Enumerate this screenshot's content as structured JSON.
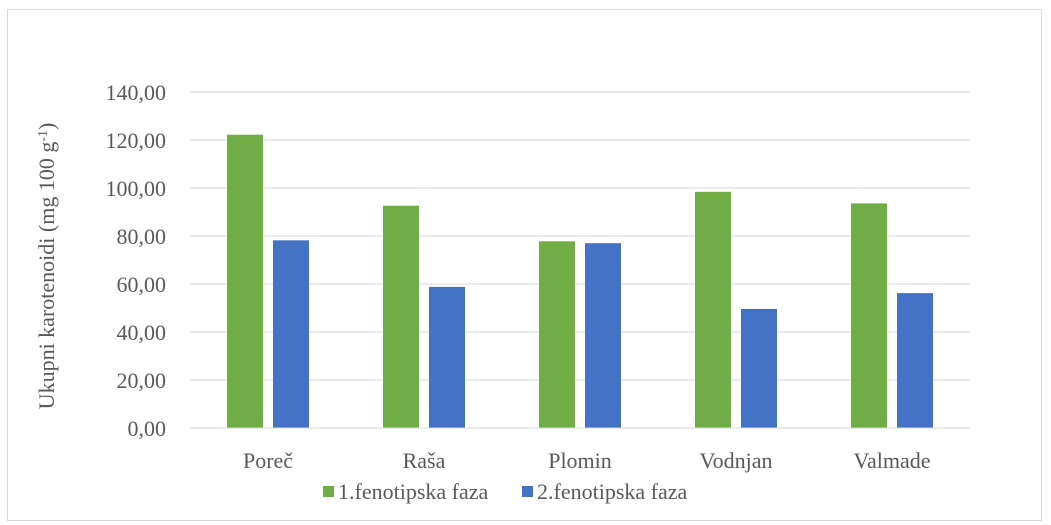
{
  "chart_data": {
    "type": "bar",
    "title": "",
    "xlabel": "",
    "ylabel": "Ukupni karotenoidi (mg 100 g",
    "ylabel_sup": "-1",
    "ylabel_close": ")",
    "categories": [
      "Poreč",
      "Raša",
      "Plomin",
      "Vodnjan",
      "Valmade"
    ],
    "series": [
      {
        "name": "1.fenotipska faza",
        "color": "#70ad47",
        "values": [
          122.2,
          92.6,
          77.8,
          98.4,
          93.6
        ]
      },
      {
        "name": "2.fenotipska faza",
        "color": "#4472c4",
        "values": [
          78.2,
          58.8,
          77.0,
          49.6,
          56.2
        ]
      }
    ],
    "ylim": [
      0,
      140
    ],
    "yticks": [
      "0,00",
      "20,00",
      "40,00",
      "60,00",
      "80,00",
      "100,00",
      "120,00",
      "140,00"
    ],
    "grid": true,
    "legend_position": "bottom"
  }
}
